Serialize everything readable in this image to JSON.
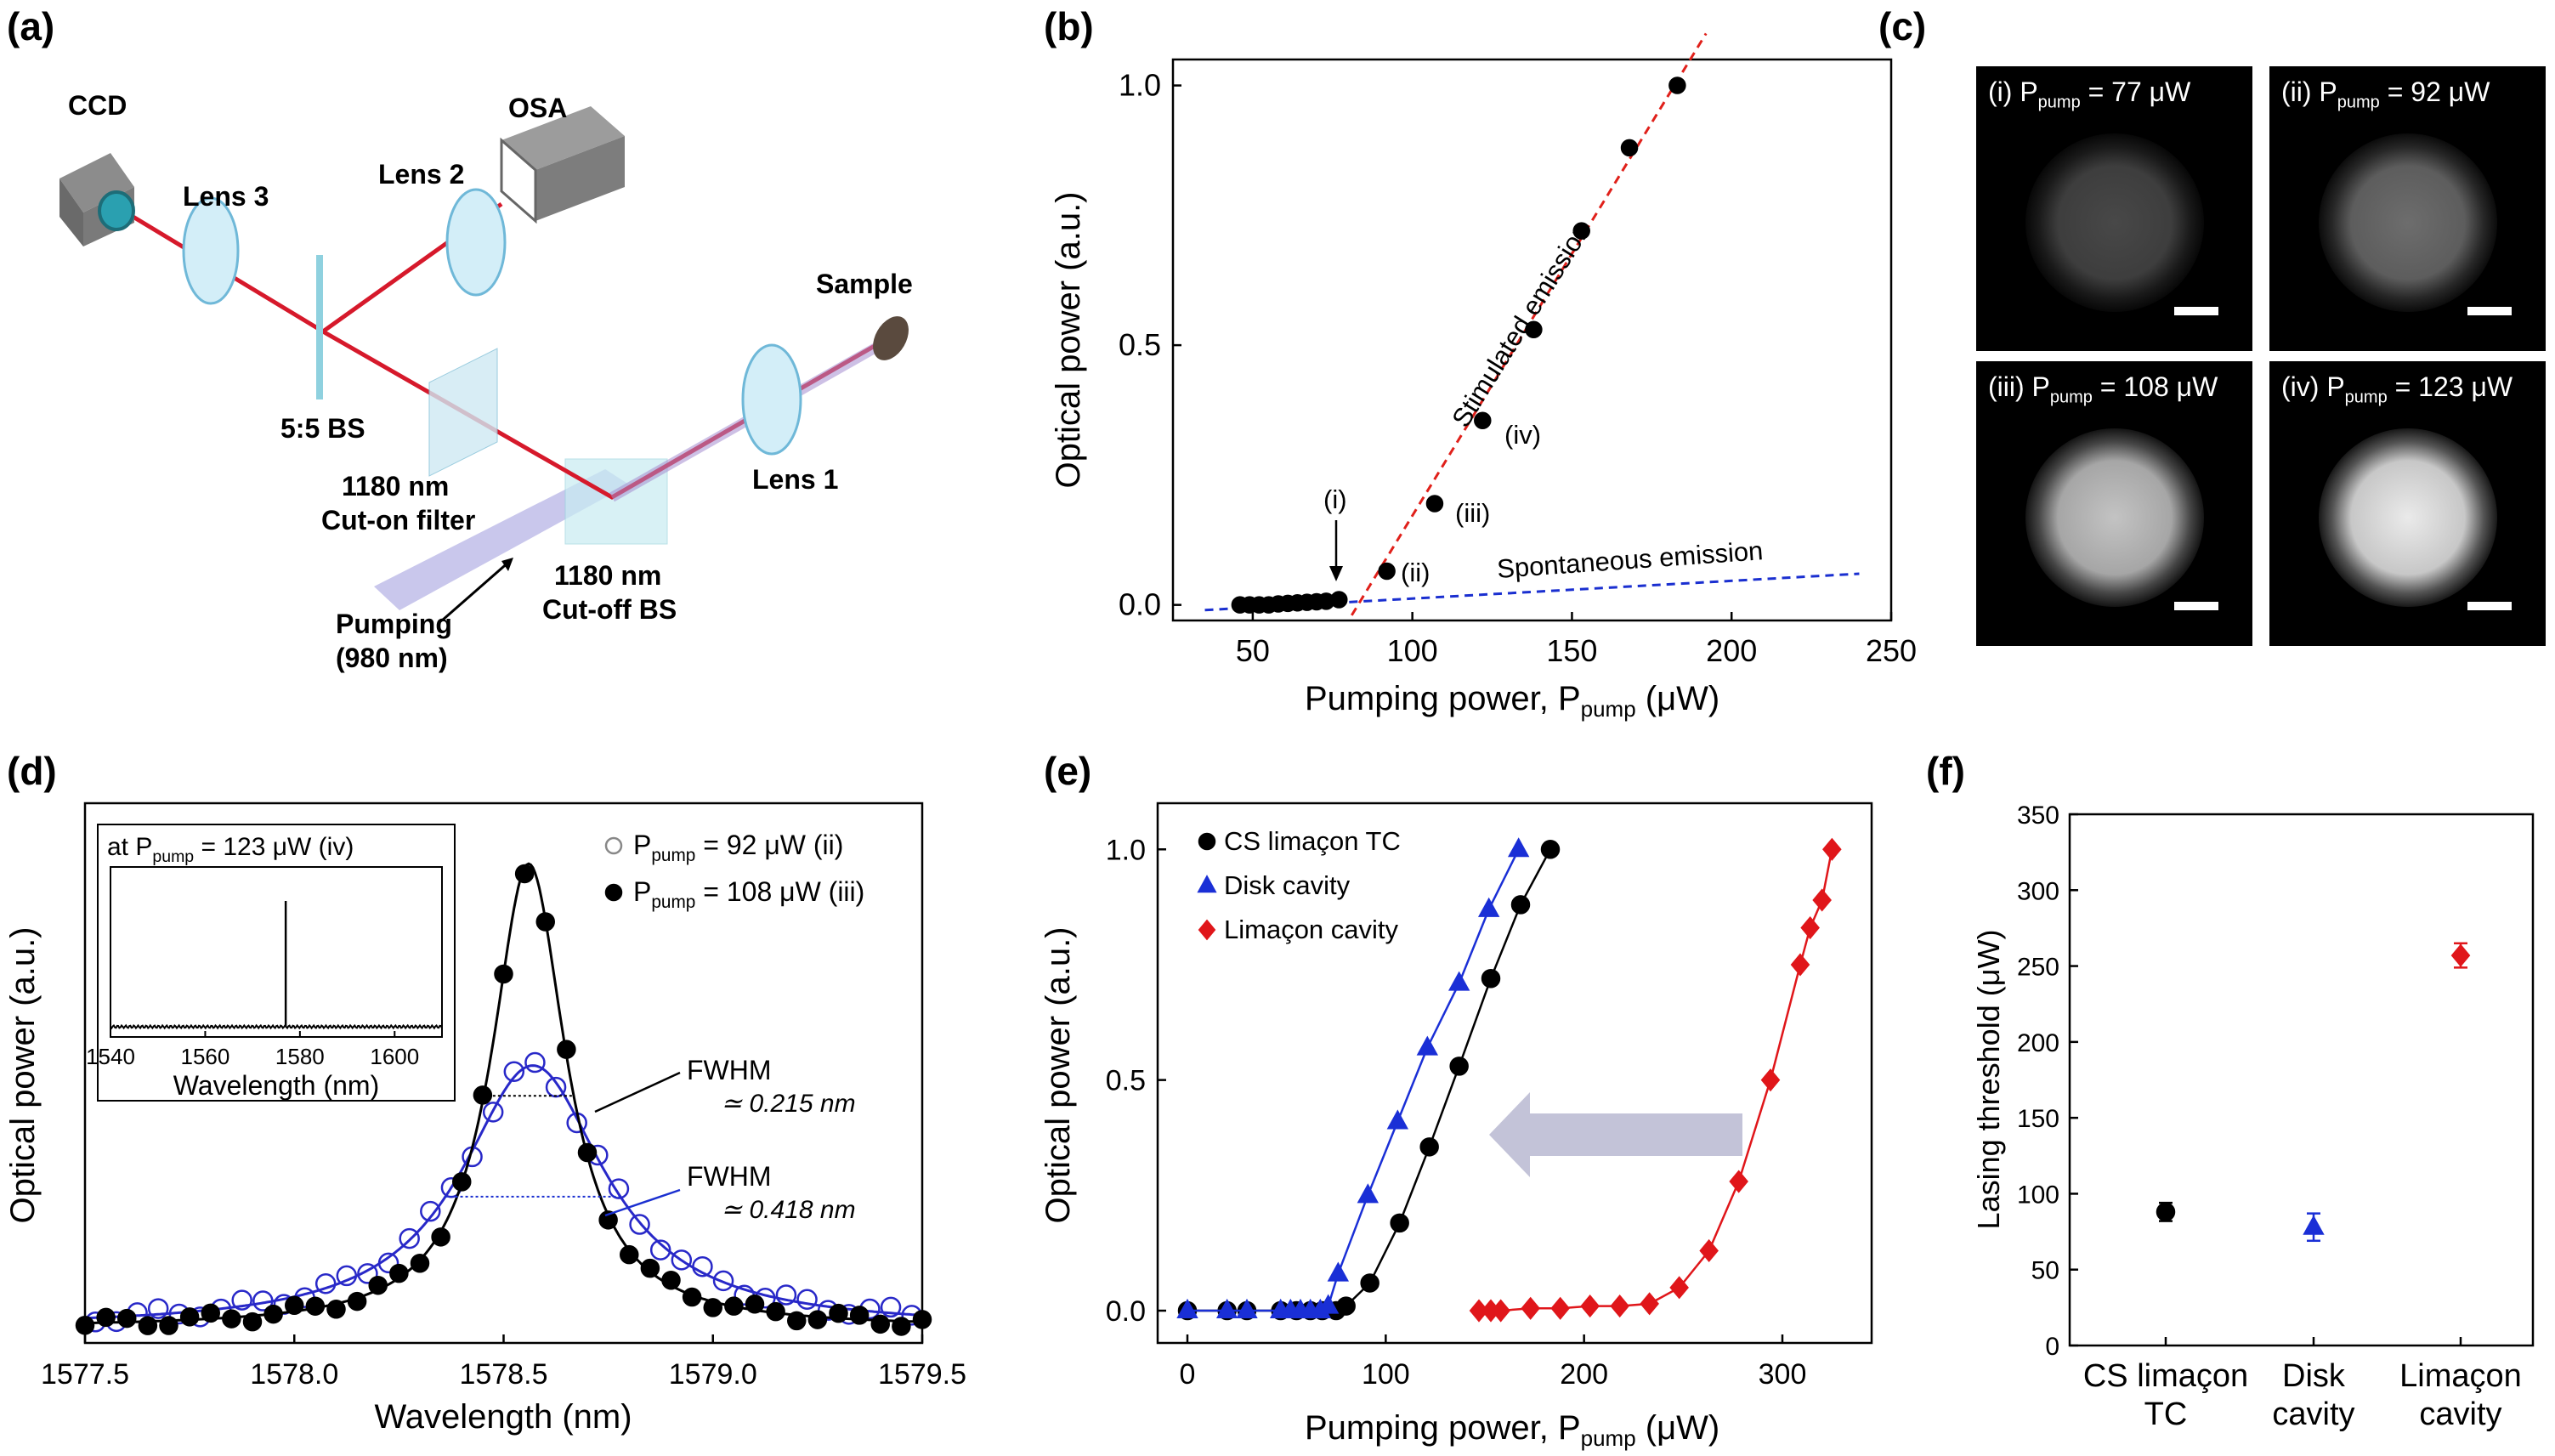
{
  "panels": {
    "a": {
      "label": "(a)",
      "components": {
        "ccd": "CCD",
        "osa": "OSA",
        "lens3": "Lens 3",
        "lens2": "Lens 2",
        "sample": "Sample",
        "bs55": "5:5 BS",
        "filter1": "1180 nm",
        "filter2": "Cut-on filter",
        "lens1": "Lens 1",
        "cutoff1": "1180 nm",
        "cutoff2": "Cut-off BS",
        "pump1": "Pumping",
        "pump2": "(980 nm)"
      }
    },
    "b": {
      "label": "(b)"
    },
    "c": {
      "label": "(c)",
      "images": [
        {
          "prefix": "(i) P",
          "sub": "pump",
          "suffix": " = 77 μW",
          "brightness": 0.15
        },
        {
          "prefix": "(ii) P",
          "sub": "pump",
          "suffix": " = 92 μW",
          "brightness": 0.32
        },
        {
          "prefix": "(iii) P",
          "sub": "pump",
          "suffix": " = 108 μW",
          "brightness": 0.72
        },
        {
          "prefix": "(iv) P",
          "sub": "pump",
          "suffix": " = 123 μW",
          "brightness": 0.9
        }
      ]
    },
    "d": {
      "label": "(d)"
    },
    "e": {
      "label": "(e)"
    },
    "f": {
      "label": "(f)"
    }
  },
  "chart_data": [
    {
      "id": "b",
      "type": "scatter",
      "xlabel": "Pumping power, P",
      "xlabel_sub": "pump",
      "xlabel_unit": " (μW)",
      "ylabel": "Optical power (a.u.)",
      "xlim": [
        25,
        250
      ],
      "ylim": [
        -0.03,
        1.05
      ],
      "xticks": [
        50,
        100,
        150,
        200,
        250
      ],
      "yticks": [
        0.0,
        0.5,
        1.0
      ],
      "points": [
        [
          46,
          0.0
        ],
        [
          49,
          0.0
        ],
        [
          52,
          0.0
        ],
        [
          55,
          0.0
        ],
        [
          58,
          0.002
        ],
        [
          61,
          0.003
        ],
        [
          64,
          0.004
        ],
        [
          67,
          0.005
        ],
        [
          70,
          0.006
        ],
        [
          73,
          0.007
        ],
        [
          77,
          0.01
        ],
        [
          92,
          0.065
        ],
        [
          107,
          0.195
        ],
        [
          122,
          0.355
        ],
        [
          138,
          0.53
        ],
        [
          153,
          0.72
        ],
        [
          168,
          0.88
        ],
        [
          183,
          1.0
        ]
      ],
      "fits": [
        {
          "name": "Stimulated emission",
          "color": "#e0201a",
          "x": [
            81,
            192
          ],
          "y": [
            -0.02,
            1.1
          ]
        },
        {
          "name": "Spontaneous emission",
          "color": "#1a2fd0",
          "x": [
            35,
            240
          ],
          "y": [
            -0.01,
            0.06
          ]
        }
      ],
      "annotations": [
        "Stimulated emission",
        "Spontaneous emission",
        "(i)",
        "(ii)",
        "(iii)",
        "(iv)"
      ]
    },
    {
      "id": "d",
      "type": "line",
      "xlabel": "Wavelength (nm)",
      "ylabel": "Optical power (a.u.)",
      "xlim": [
        1577.5,
        1579.5
      ],
      "ylim": [
        0,
        1.07
      ],
      "xticks": [
        1577.5,
        1578.0,
        1578.5,
        1579.0,
        1579.5
      ],
      "series": [
        {
          "name": "P",
          "sub": "pump",
          "suffix": " = 92 μW (ii)",
          "marker": "open-circle",
          "color": "#2828c8",
          "center": 1578.57,
          "fwhm": 0.418,
          "peak": 0.52,
          "base": 0.03
        },
        {
          "name": "P",
          "sub": "pump",
          "suffix": " = 108 μW (iii)",
          "marker": "filled-circle",
          "color": "#000000",
          "center": 1578.56,
          "fwhm": 0.215,
          "peak": 0.92,
          "base": 0.03
        }
      ],
      "annotations": [
        {
          "title": "FWHM",
          "value": "≃ 0.215 nm"
        },
        {
          "title": "FWHM",
          "value": "≃ 0.418 nm"
        }
      ],
      "inset": {
        "title_prefix": "at P",
        "title_sub": "pump",
        "title_suffix": " = 123 μW (iv)",
        "xlabel": "Wavelength (nm)",
        "xlim": [
          1540,
          1610
        ],
        "xticks": [
          1540,
          1560,
          1580,
          1600
        ],
        "peak_x": 1577
      }
    },
    {
      "id": "e",
      "type": "line",
      "xlabel": "Pumping power, P",
      "xlabel_sub": "pump",
      "xlabel_unit": " (μW)",
      "ylabel": "Optical power (a.u.)",
      "xlim": [
        -15,
        345
      ],
      "ylim": [
        -0.07,
        1.1
      ],
      "xticks": [
        0,
        100,
        200,
        300
      ],
      "yticks": [
        0.0,
        0.5,
        1.0
      ],
      "series": [
        {
          "name": "CS limaçon TC",
          "marker": "circle",
          "color": "#000000",
          "points": [
            [
              0,
              0
            ],
            [
              20,
              0
            ],
            [
              30,
              0
            ],
            [
              47,
              0
            ],
            [
              55,
              0
            ],
            [
              62,
              0
            ],
            [
              68,
              0
            ],
            [
              75,
              0
            ],
            [
              80,
              0.01
            ],
            [
              92,
              0.06
            ],
            [
              107,
              0.19
            ],
            [
              122,
              0.355
            ],
            [
              137,
              0.53
            ],
            [
              153,
              0.72
            ],
            [
              168,
              0.88
            ],
            [
              183,
              1.0
            ]
          ]
        },
        {
          "name": "Disk cavity",
          "marker": "triangle",
          "color": "#1a2fd6",
          "points": [
            [
              0,
              0
            ],
            [
              20,
              0
            ],
            [
              30,
              0
            ],
            [
              47,
              0
            ],
            [
              52,
              0
            ],
            [
              57,
              0
            ],
            [
              62,
              0
            ],
            [
              67,
              0
            ],
            [
              71,
              0.01
            ],
            [
              76,
              0.08
            ],
            [
              91,
              0.25
            ],
            [
              106,
              0.41
            ],
            [
              121,
              0.57
            ],
            [
              137,
              0.71
            ],
            [
              152,
              0.87
            ],
            [
              167,
              1.0
            ]
          ]
        },
        {
          "name": "Limaçon cavity",
          "marker": "diamond",
          "color": "#e0161a",
          "points": [
            [
              147,
              0
            ],
            [
              153,
              0
            ],
            [
              158,
              0
            ],
            [
              173,
              0.005
            ],
            [
              188,
              0.005
            ],
            [
              203,
              0.01
            ],
            [
              218,
              0.01
            ],
            [
              233,
              0.015
            ],
            [
              248,
              0.05
            ],
            [
              263,
              0.13
            ],
            [
              278,
              0.28
            ],
            [
              294,
              0.5
            ],
            [
              309,
              0.75
            ],
            [
              314,
              0.83
            ],
            [
              320,
              0.89
            ],
            [
              325,
              1.0
            ]
          ]
        }
      ]
    },
    {
      "id": "f",
      "type": "scatter",
      "ylabel": "Lasing threshold (μW)",
      "ylim": [
        0,
        350
      ],
      "yticks": [
        0,
        50,
        100,
        150,
        200,
        250,
        300,
        350
      ],
      "categories": [
        [
          "CS limaçon",
          "TC"
        ],
        [
          "Disk",
          "cavity"
        ],
        [
          "Limaçon",
          "cavity"
        ]
      ],
      "values": [
        88,
        78,
        257
      ],
      "errors": [
        6,
        9,
        8
      ],
      "colors": [
        "#000000",
        "#1a2fd6",
        "#e0161a"
      ],
      "markers": [
        "circle",
        "triangle",
        "diamond"
      ]
    }
  ]
}
